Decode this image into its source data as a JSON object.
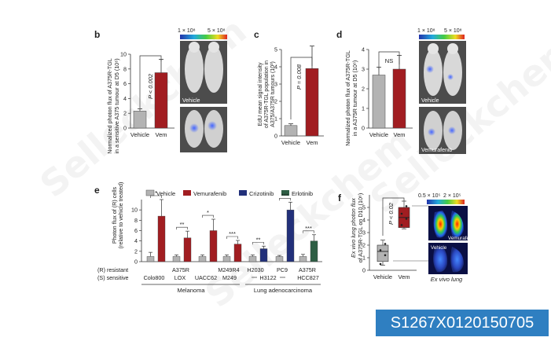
{
  "colors": {
    "vehicle": "#b3b3b3",
    "vem": "#a11d21",
    "crizotinib": "#22307a",
    "erlotinib": "#2e5e44",
    "mouse_bg": "#555555",
    "id_badge": "#2f7fc1"
  },
  "watermark": "Selleckchem",
  "panel_b": {
    "letter": "b",
    "ylabel_line1": "Normalized photon flux of A375R-TGL",
    "ylabel_line2": "in a sensitive A375 tumour at D5 (10⁸)",
    "pvalue": "P < 0.002",
    "image_label": "Vehicle",
    "scale_left": "1 × 10⁸",
    "scale_right": "5 × 10⁸"
  },
  "panel_c": {
    "letter": "c",
    "ylabel_line1": "EdU mean signal intensity",
    "ylabel_line2": "of A375R-TGL population in",
    "ylabel_line3": "A375/A375R tumours (10³)",
    "pvalue": "P = 0.008"
  },
  "panel_d": {
    "letter": "d",
    "ylabel_line1": "Normalized photon flux of A375R-TGL",
    "ylabel_line2": "in a A375R tumour at D5 (10⁸)",
    "ns": "NS",
    "image_label_top": "Vehicle",
    "image_label_bottom": "Vemurafenib",
    "scale_left": "1 × 10⁸",
    "scale_right": "5 × 10⁸"
  },
  "panel_e": {
    "letter": "e",
    "ylabel_line1": "Photon flux of (R) cells",
    "ylabel_line2": "(relative to vehicle treated)",
    "legend": [
      "Vehicle",
      "Vemurafenib",
      "Crizotinib",
      "Erlotinib"
    ],
    "row_resistant": "(R) resistant",
    "row_sensitive": "(S) sensitive",
    "resistant_labels": [
      "A375R",
      "M249R4",
      "H2030",
      "PC9",
      "A375R"
    ],
    "sensitive_labels": [
      "Colo800",
      "LOX",
      "UACC62",
      "M249",
      "H3122",
      "HCC827"
    ],
    "group_melanoma": "Melanoma",
    "group_lung": "Lung adenocarcinoma"
  },
  "panel_f": {
    "letter": "f",
    "ylabel_line1": "Ex vivo lung photon flux",
    "ylabel_line2": "of A375R-TGL on D10 (10⁶)",
    "pvalue": "P < 0.02",
    "image_label_top": "Vemurafenib",
    "image_label_bottom": "Vehicle",
    "ex_vivo_label": "Ex vivo lung",
    "scale_left": "0.5 × 10⁵",
    "scale_right": "2 × 10⁵"
  },
  "catalog_id": "S1267X0120150705",
  "chart_data": [
    {
      "type": "bar",
      "panel": "b",
      "categories": [
        "Vehicle",
        "Vem"
      ],
      "values": [
        2.3,
        7.5
      ],
      "errors": [
        0.3,
        1.8
      ],
      "yticks": [
        0,
        2,
        4,
        6,
        8,
        10
      ],
      "ylim": [
        0,
        10
      ]
    },
    {
      "type": "bar",
      "panel": "c",
      "categories": [
        "Vehicle",
        "Vem"
      ],
      "values": [
        0.6,
        3.9
      ],
      "errors": [
        0.1,
        1.3
      ],
      "yticks": [
        0,
        1,
        2,
        3,
        4,
        5
      ],
      "ylim": [
        0,
        5
      ]
    },
    {
      "type": "bar",
      "panel": "d",
      "categories": [
        "Vehicle",
        "Vem"
      ],
      "values": [
        2.7,
        3.0
      ],
      "errors": [
        0.4,
        0.7
      ],
      "yticks": [
        0,
        1,
        2,
        3,
        4
      ],
      "ylim": [
        0,
        4
      ]
    },
    {
      "type": "bar",
      "panel": "e",
      "yticks": [
        0,
        2,
        4,
        6,
        8,
        10
      ],
      "ylim": [
        0,
        12
      ],
      "pairs": [
        {
          "vehicle": 1.0,
          "vehicle_err": 0.8,
          "treated": 8.8,
          "treated_err": 3.2,
          "drug": "Vemurafenib",
          "sig": "*"
        },
        {
          "vehicle": 1.0,
          "vehicle_err": 0.3,
          "treated": 4.6,
          "treated_err": 1.3,
          "drug": "Vemurafenib",
          "sig": "**"
        },
        {
          "vehicle": 1.0,
          "vehicle_err": 0.3,
          "treated": 6.0,
          "treated_err": 2.2,
          "drug": "Vemurafenib",
          "sig": "*"
        },
        {
          "vehicle": 1.0,
          "vehicle_err": 0.3,
          "treated": 3.4,
          "treated_err": 0.7,
          "drug": "Vemurafenib",
          "sig": "***"
        },
        {
          "vehicle": 1.0,
          "vehicle_err": 0.3,
          "treated": 2.5,
          "treated_err": 0.5,
          "drug": "Crizotinib",
          "sig": "**"
        },
        {
          "vehicle": 1.0,
          "vehicle_err": 0.2,
          "treated": 10.0,
          "treated_err": 1.5,
          "drug": "Crizotinib",
          "sig": "***"
        },
        {
          "vehicle": 1.0,
          "vehicle_err": 0.4,
          "treated": 4.0,
          "treated_err": 1.2,
          "drug": "Erlotinib",
          "sig": "***"
        }
      ]
    },
    {
      "type": "box",
      "panel": "f",
      "categories": [
        "Vehicle",
        "Vem"
      ],
      "boxes": [
        {
          "min": 0.4,
          "q1": 0.7,
          "median": 1.5,
          "q3": 2.0,
          "max": 2.4,
          "points": [
            0.5,
            1.2,
            1.6,
            2.1
          ]
        },
        {
          "min": 3.3,
          "q1": 3.4,
          "median": 4.2,
          "q3": 5.0,
          "max": 5.5,
          "points": [
            3.6,
            4.1,
            4.5,
            5.1
          ]
        }
      ],
      "yticks": [
        0,
        1,
        2,
        3,
        4,
        5
      ],
      "ylim": [
        0,
        6
      ]
    }
  ]
}
